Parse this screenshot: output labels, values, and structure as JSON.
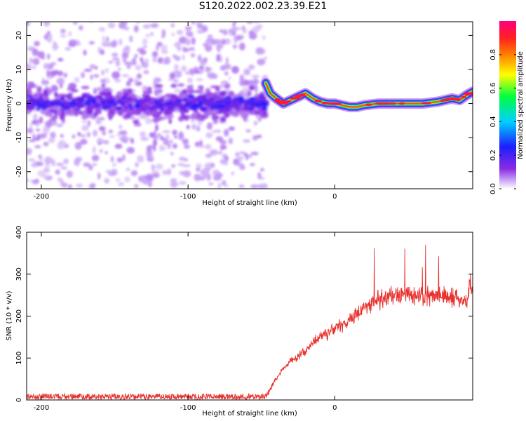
{
  "title": "S120.2022.002.23.39.E21",
  "chart_data": [
    {
      "type": "heatmap",
      "xlabel": "Height of straight line (km)",
      "ylabel": "Frequency (Hz)",
      "xlim": [
        -210,
        94
      ],
      "ylim": [
        -25,
        24
      ],
      "xticks": [
        -200,
        -100,
        0
      ],
      "yticks": [
        -20,
        -10,
        0,
        10,
        20
      ],
      "grid": false,
      "colorbar": {
        "label": "Normalized spectral amplitude",
        "range": [
          0,
          1
        ],
        "ticks": [
          0.0,
          0.2,
          0.4,
          0.6,
          0.8
        ],
        "colormap": "rainbow (violet to magenta)"
      },
      "noise_region": {
        "x_start": -210,
        "x_end": -47,
        "center_hz": 0,
        "spread_hz": 25
      },
      "ridge": {
        "x": [
          -47,
          -44,
          -40,
          -35,
          -30,
          -25,
          -20,
          -15,
          -10,
          -5,
          0,
          5,
          10,
          15,
          20,
          30,
          40,
          50,
          60,
          70,
          75,
          80,
          85,
          90,
          94
        ],
        "frequency_hz": [
          6,
          3,
          1.5,
          0,
          1,
          2,
          3,
          1.5,
          0.5,
          0,
          0,
          -0.5,
          -1,
          -1,
          -0.5,
          0,
          0,
          0,
          0,
          0.5,
          1,
          1.5,
          1,
          2.5,
          3.5
        ]
      }
    },
    {
      "type": "line",
      "xlabel": "Height of straight line (km)",
      "ylabel": "SNR (10 * v/v)",
      "xlim": [
        -210,
        94
      ],
      "ylim": [
        0,
        400
      ],
      "xticks": [
        -200,
        -100,
        0
      ],
      "yticks": [
        0,
        100,
        200,
        300,
        400
      ],
      "grid": false,
      "color": "#e8302c",
      "series": [
        {
          "x": [
            -210,
            -180,
            -150,
            -120,
            -90,
            -60,
            -47,
            -45,
            -40,
            -35,
            -30,
            -25,
            -20,
            -15,
            -10,
            -5,
            0,
            10,
            20,
            30,
            40,
            50,
            60,
            70,
            80,
            85,
            90,
            92,
            94
          ],
          "values": [
            8,
            8,
            8,
            8,
            8,
            8,
            8,
            20,
            50,
            75,
            95,
            105,
            115,
            135,
            150,
            160,
            170,
            190,
            220,
            240,
            250,
            255,
            250,
            250,
            245,
            240,
            230,
            280,
            270
          ]
        }
      ]
    }
  ]
}
